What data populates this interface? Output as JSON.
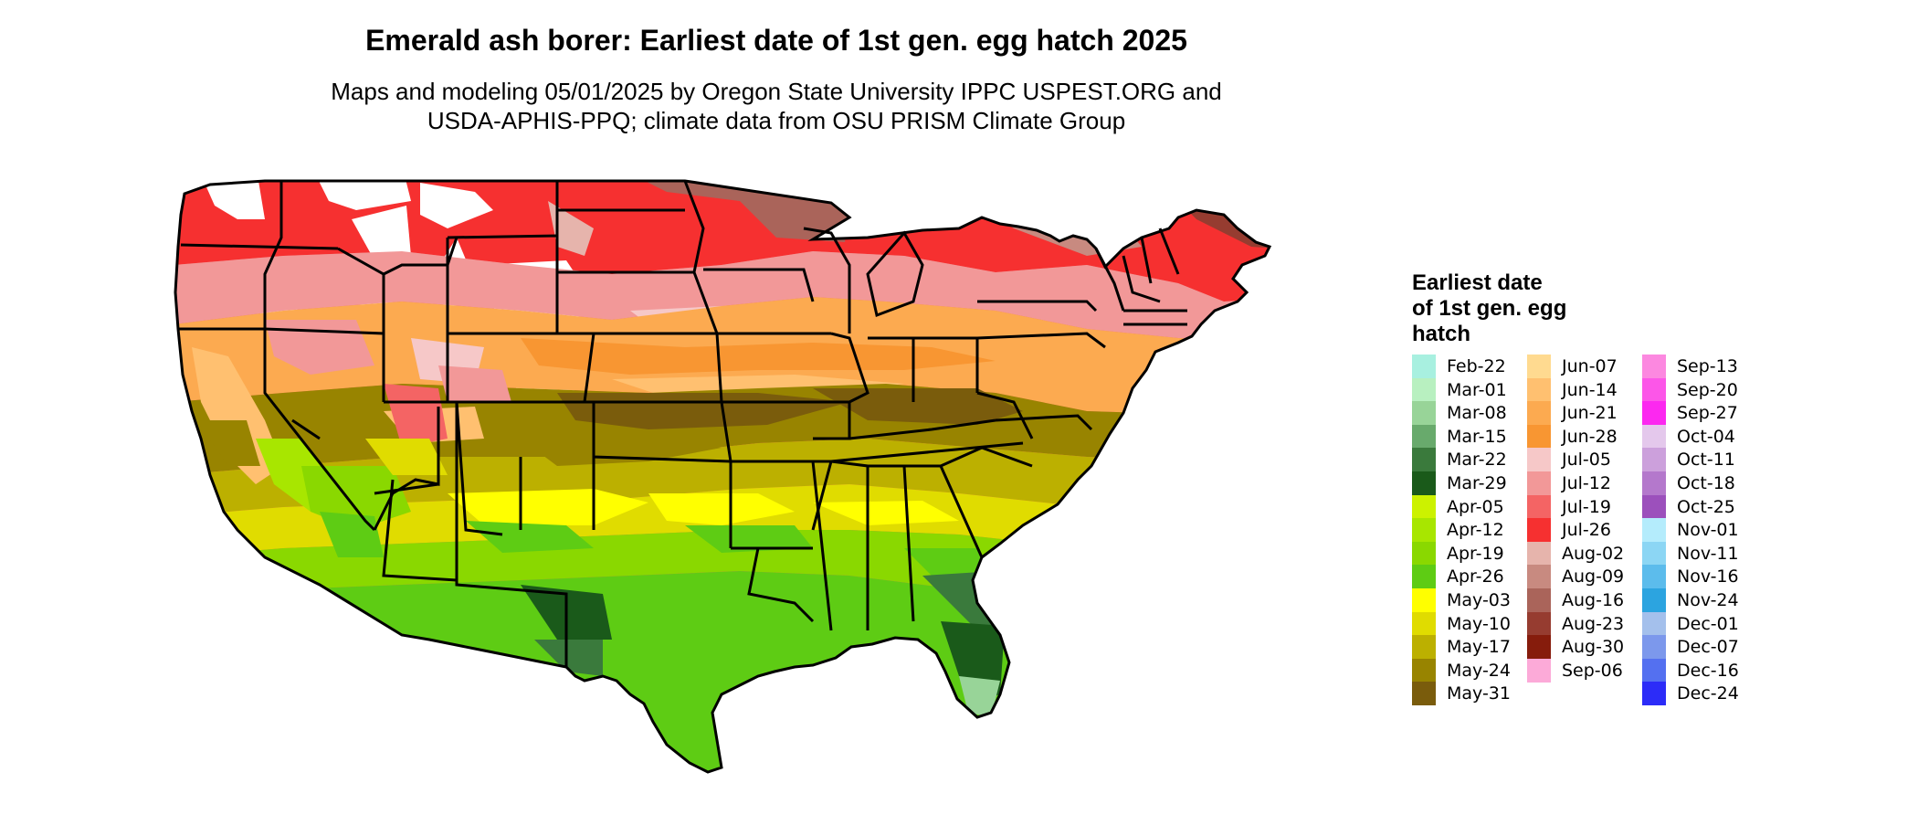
{
  "title": "Emerald ash borer: Earliest date of 1st gen. egg hatch 2025",
  "subtitle_line1": "Maps and modeling 05/01/2025 by Oregon State University IPPC USPEST.ORG and",
  "subtitle_line2": "USDA-APHIS-PPQ; climate data from OSU PRISM Climate Group",
  "legend_title_line1": "Earliest date",
  "legend_title_line2": "of 1st gen. egg",
  "legend_title_line3": "hatch",
  "legend": [
    {
      "label": "Feb-22",
      "color": "#a8f0e0"
    },
    {
      "label": "Mar-01",
      "color": "#b8f0c0"
    },
    {
      "label": "Mar-08",
      "color": "#98d498"
    },
    {
      "label": "Mar-15",
      "color": "#68aa6c"
    },
    {
      "label": "Mar-22",
      "color": "#3a7a3c"
    },
    {
      "label": "Mar-29",
      "color": "#1a5a1a"
    },
    {
      "label": "Apr-05",
      "color": "#ccf200"
    },
    {
      "label": "Apr-12",
      "color": "#a8e600"
    },
    {
      "label": "Apr-19",
      "color": "#8ad800"
    },
    {
      "label": "Apr-26",
      "color": "#5ecc14"
    },
    {
      "label": "May-03",
      "color": "#ffff00"
    },
    {
      "label": "May-10",
      "color": "#e0dc00"
    },
    {
      "label": "May-17",
      "color": "#bcb000"
    },
    {
      "label": "May-24",
      "color": "#988400"
    },
    {
      "label": "May-31",
      "color": "#7a5c0c"
    },
    {
      "label": "Jun-07",
      "color": "#ffda90"
    },
    {
      "label": "Jun-14",
      "color": "#ffc070"
    },
    {
      "label": "Jun-21",
      "color": "#fcaa50"
    },
    {
      "label": "Jun-28",
      "color": "#f89632"
    },
    {
      "label": "Jul-05",
      "color": "#f6c8c8"
    },
    {
      "label": "Jul-12",
      "color": "#f29898"
    },
    {
      "label": "Jul-19",
      "color": "#f46464"
    },
    {
      "label": "Jul-26",
      "color": "#f63030"
    },
    {
      "label": "Aug-02",
      "color": "#e6b4ac"
    },
    {
      "label": "Aug-09",
      "color": "#c88a80"
    },
    {
      "label": "Aug-16",
      "color": "#aa645a"
    },
    {
      "label": "Aug-23",
      "color": "#963c30"
    },
    {
      "label": "Aug-30",
      "color": "#861c0c"
    },
    {
      "label": "Sep-06",
      "color": "#fcaad8"
    },
    {
      "label": "Sep-13",
      "color": "#fc88e0"
    },
    {
      "label": "Sep-20",
      "color": "#fc56e8"
    },
    {
      "label": "Sep-27",
      "color": "#fc28f0"
    },
    {
      "label": "Oct-04",
      "color": "#e4c8ec"
    },
    {
      "label": "Oct-11",
      "color": "#cca0dc"
    },
    {
      "label": "Oct-18",
      "color": "#b478cc"
    },
    {
      "label": "Oct-25",
      "color": "#9c50bc"
    },
    {
      "label": "Nov-01",
      "color": "#b4ecfc"
    },
    {
      "label": "Nov-11",
      "color": "#8cd6f4"
    },
    {
      "label": "Nov-16",
      "color": "#5cbcec"
    },
    {
      "label": "Nov-24",
      "color": "#2ca4e0"
    },
    {
      "label": "Dec-01",
      "color": "#a4c0ec"
    },
    {
      "label": "Dec-07",
      "color": "#7c98ec"
    },
    {
      "label": "Dec-16",
      "color": "#5470f0"
    },
    {
      "label": "Dec-24",
      "color": "#2c2cf8"
    }
  ]
}
